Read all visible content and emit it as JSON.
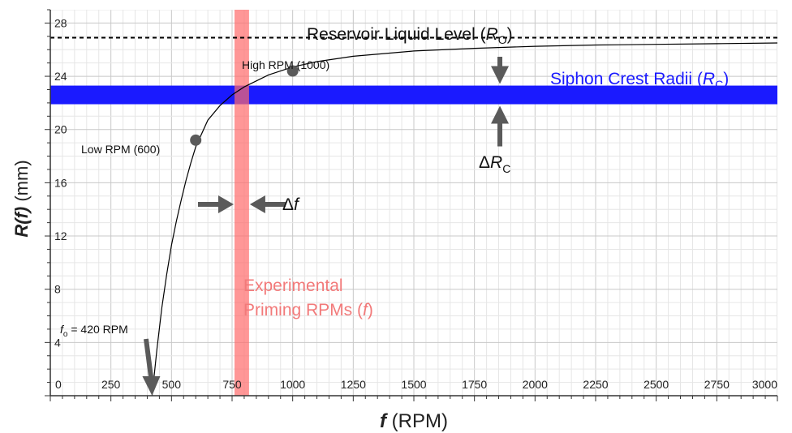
{
  "chart_data": {
    "type": "line",
    "xlabel_bold": "f",
    "xlabel_rest": " (RPM)",
    "ylabel_bold": "R(f)",
    "ylabel_rest": " (mm)",
    "xlim": [
      0,
      3000
    ],
    "ylim": [
      0,
      29
    ],
    "x_ticks": [
      0,
      250,
      500,
      750,
      1000,
      1250,
      1500,
      1750,
      2000,
      2250,
      2500,
      2750,
      3000
    ],
    "x_tick_labels": [
      "0",
      "250",
      "500",
      "750",
      "1000",
      "1250",
      "1500",
      "1750",
      "2000",
      "2250",
      "2500",
      "2750",
      "3000"
    ],
    "y_ticks": [
      4,
      8,
      12,
      16,
      20,
      24,
      28
    ],
    "y_tick_labels": [
      "4",
      "8",
      "12",
      "16",
      "20",
      "24",
      "28"
    ],
    "grid": true,
    "series": [
      {
        "x": [
          420,
          440,
          460,
          480,
          500,
          520,
          540,
          560,
          580,
          600,
          650,
          700,
          750,
          800,
          900,
          1000,
          1100,
          1250,
          1500,
          1750,
          2000,
          2250,
          2500,
          2750,
          3000
        ],
        "y": [
          0,
          3.5,
          6.6,
          9.1,
          11.3,
          13.1,
          14.7,
          16.2,
          17.5,
          18.7,
          20.7,
          21.8,
          22.6,
          23.2,
          24.1,
          24.7,
          25.1,
          25.5,
          25.9,
          26.1,
          26.25,
          26.35,
          26.4,
          26.45,
          26.5
        ],
        "color": "#000000"
      }
    ],
    "points": [
      {
        "label": "Low RPM (600)",
        "x": 600,
        "y": 19.2
      },
      {
        "label": "High RPM (1000)",
        "x": 1000,
        "y": 24.4
      }
    ],
    "reservoir_level": {
      "y": 26.9,
      "label_text": "Reservoir Liquid Level (",
      "label_var": "R",
      "label_sub": "O",
      "label_close": ")"
    },
    "siphon_band": {
      "y_min": 21.9,
      "y_max": 23.3,
      "color": "#1a1aff",
      "label_text": "Siphon Crest Radii (",
      "label_var": "R",
      "label_sub": "C",
      "label_close": ")"
    },
    "priming_band": {
      "x_min": 760,
      "x_max": 820,
      "color": "#ff6b6b",
      "label_line1": "Experimental",
      "label_line2_text": "Priming RPMs (",
      "label_line2_var": "f",
      "label_line2_close": ")"
    },
    "annotations": {
      "delta_f_prefix": "Δ",
      "delta_f_var": "f",
      "delta_rc_prefix": "Δ",
      "delta_rc_var": "R",
      "delta_rc_sub": "C",
      "fo_var": "f",
      "fo_sub": "o",
      "fo_rest": " = 420 RPM"
    },
    "colors": {
      "arrow": "#5a5a5a",
      "grid_major": "#c8c8c8",
      "grid_minor": "#e6e6e6",
      "axis": "#333333"
    }
  }
}
